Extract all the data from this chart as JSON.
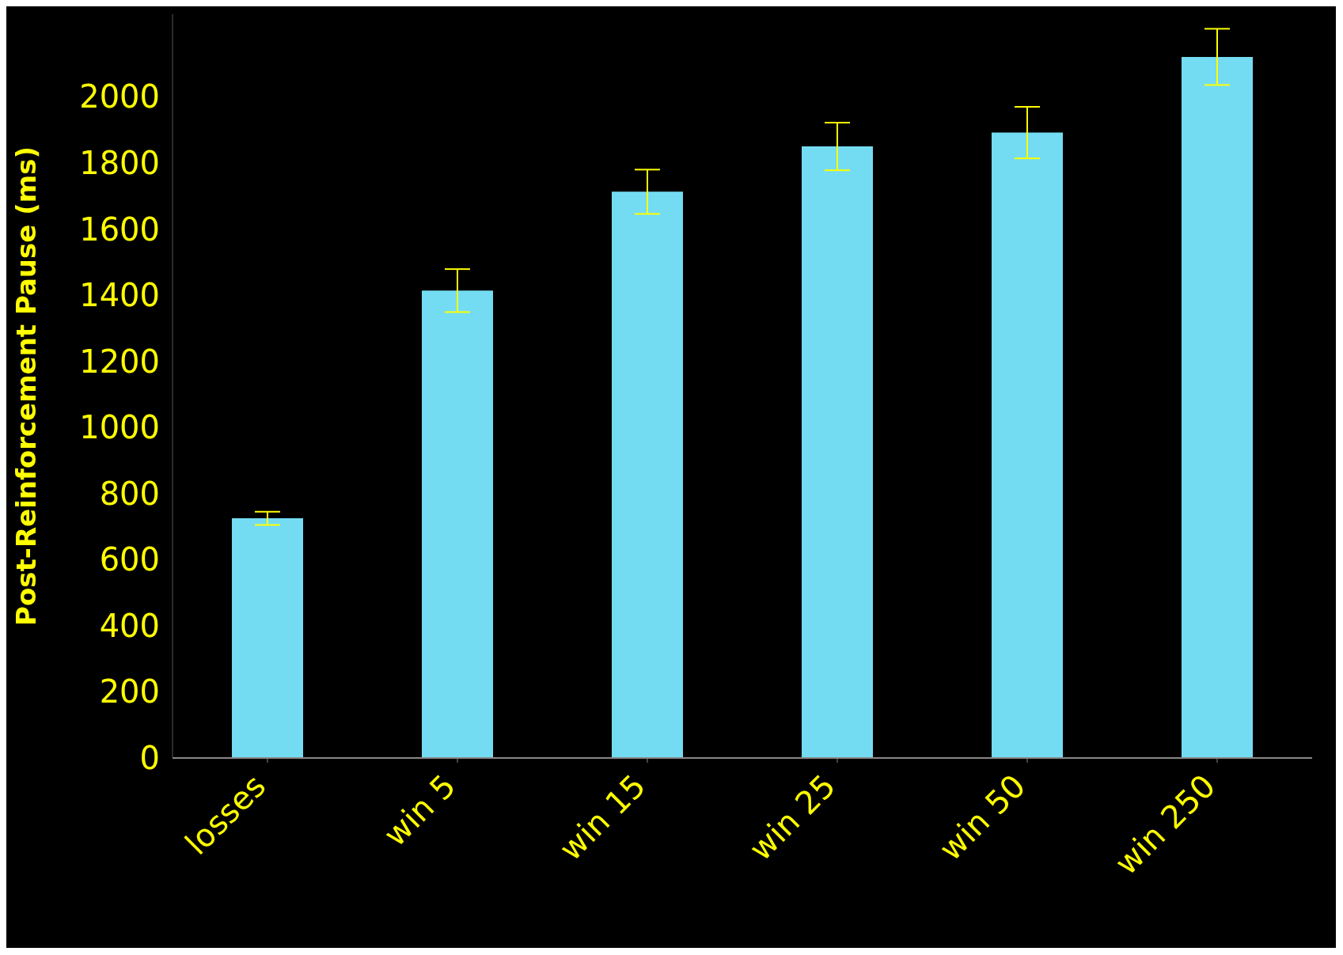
{
  "chart_data": {
    "type": "bar",
    "ylabel": "Post-Reinforcement Pause (ms)",
    "categories": [
      "losses",
      "win 5",
      "win 15",
      "win 25",
      "win 50",
      "win 250"
    ],
    "values": [
      725,
      1414,
      1713,
      1850,
      1892,
      2121
    ],
    "errors": [
      20,
      65,
      67,
      72,
      78,
      85
    ],
    "color": "#74dcf2",
    "ylim": [
      0,
      2250
    ],
    "yticks": [
      0,
      200,
      400,
      600,
      800,
      1000,
      1200,
      1400,
      1600,
      1800,
      2000
    ],
    "grid": false,
    "legend": false
  }
}
